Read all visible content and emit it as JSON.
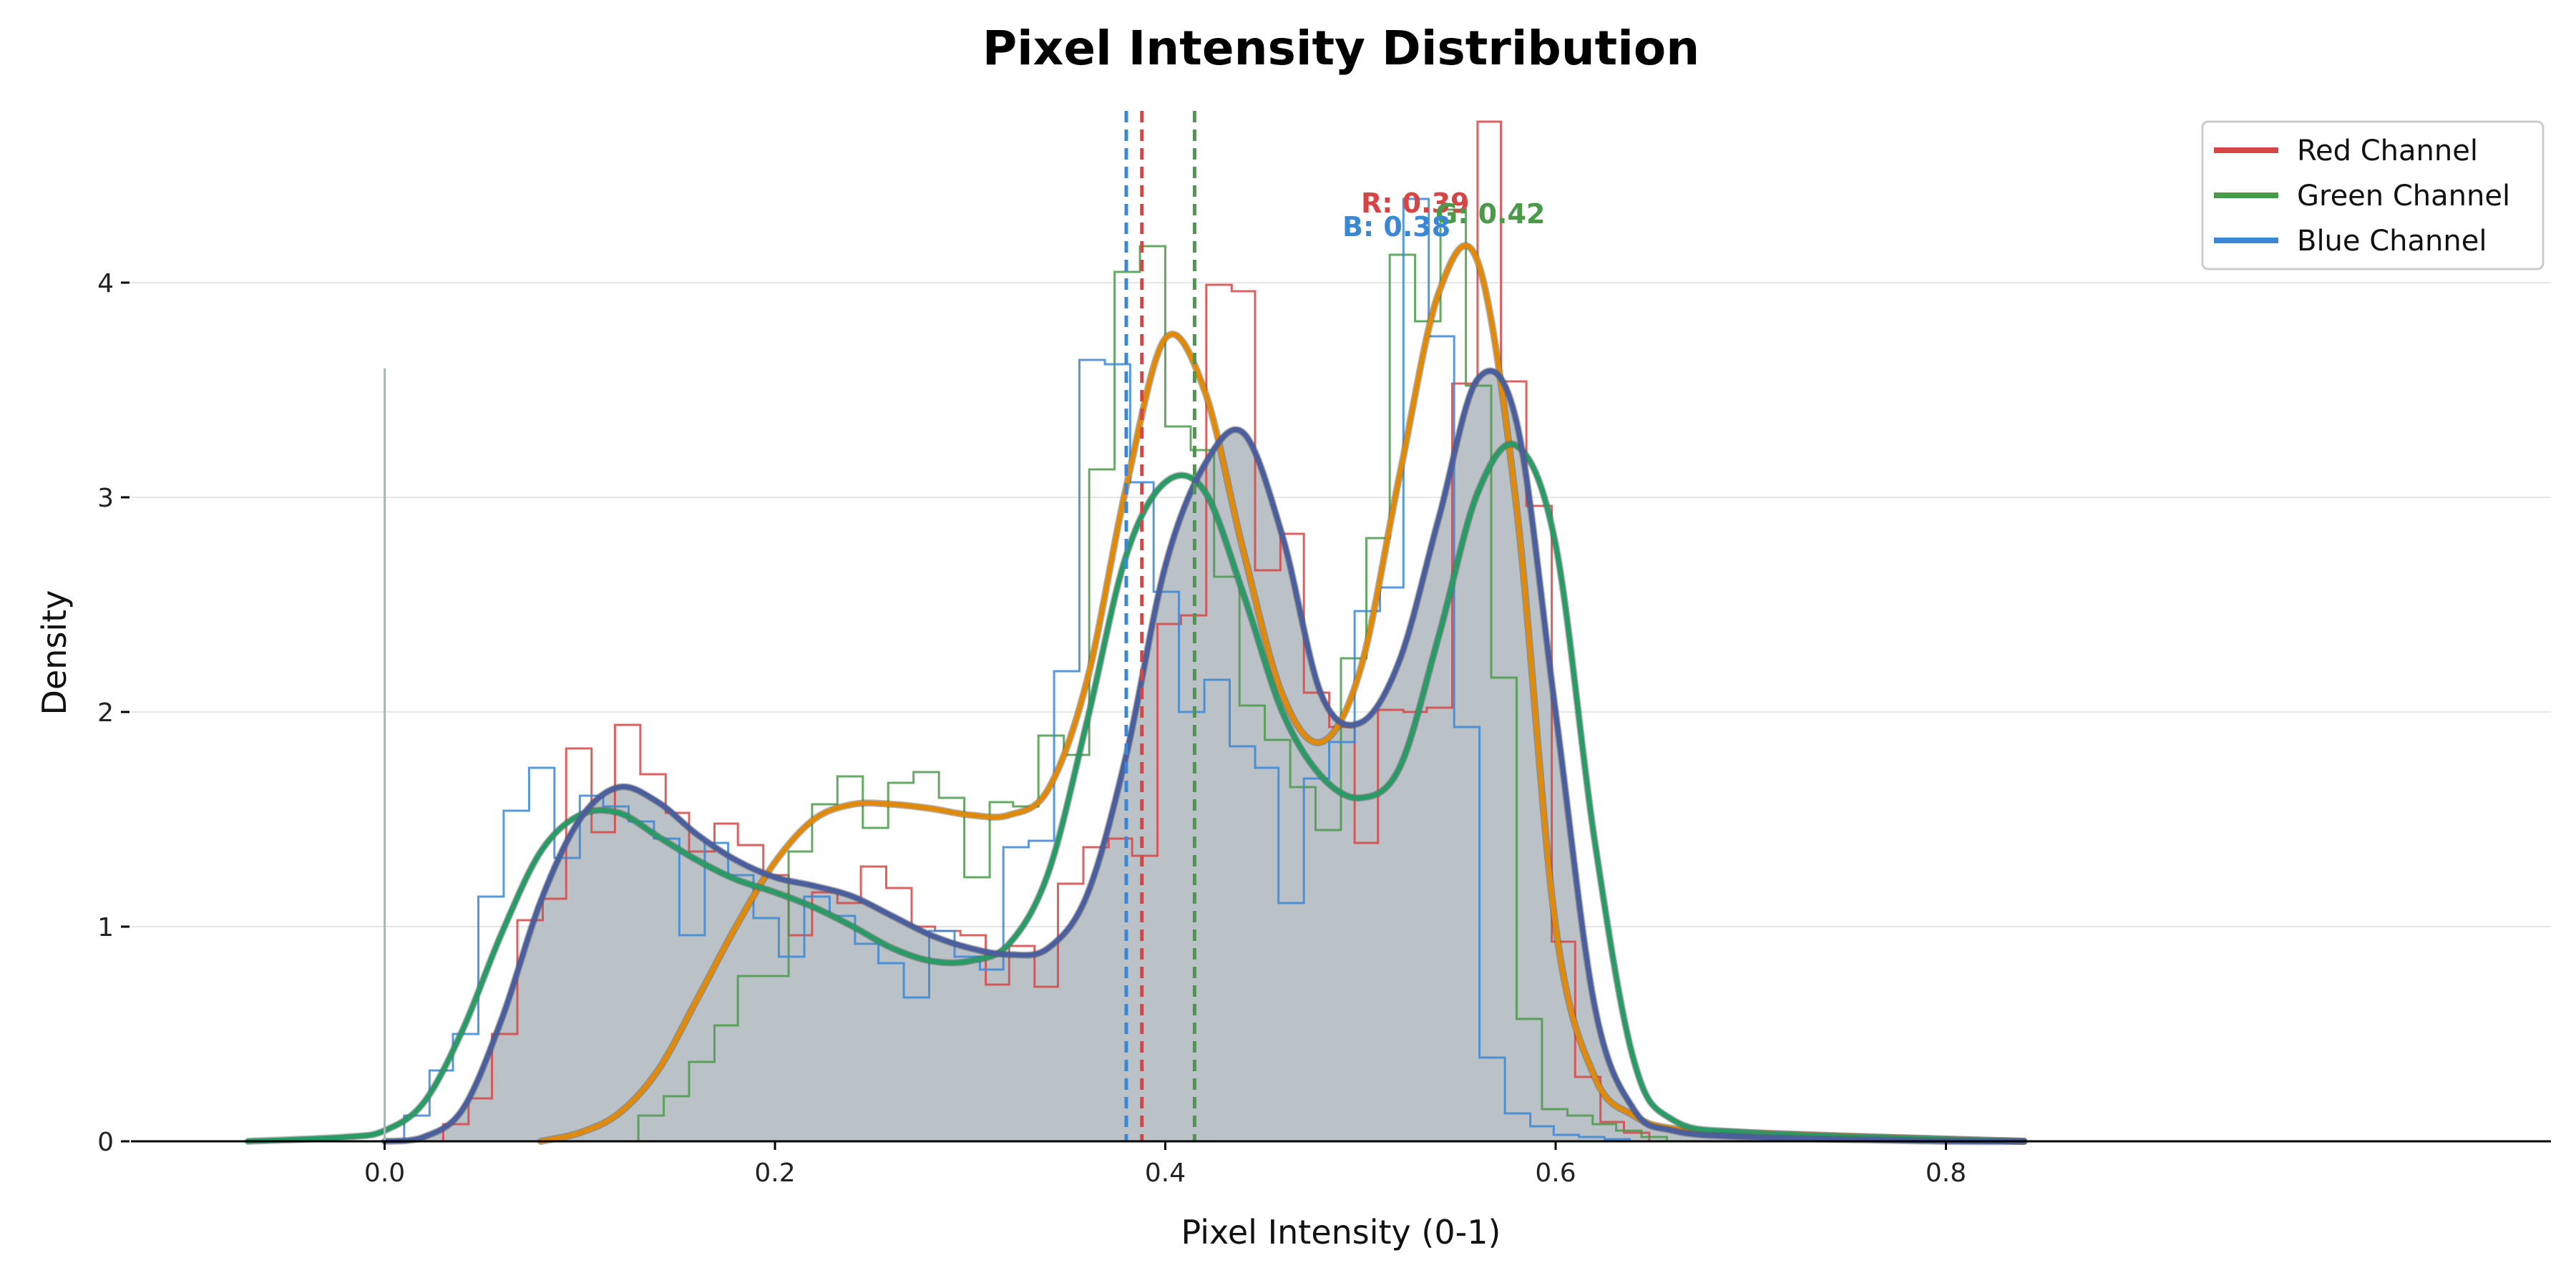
{
  "chart_data": {
    "type": "histogram+kde",
    "title": "Pixel Intensity Distribution",
    "xlabel": "Pixel Intensity (0-1)",
    "ylabel": "Density",
    "xlim": [
      -0.13,
      1.11
    ],
    "ylim": [
      0,
      5.0
    ],
    "xticks": [
      0.0,
      0.2,
      0.4,
      0.6,
      0.8
    ],
    "xtick_labels": [
      "0.0",
      "0.2",
      "0.4",
      "0.6",
      "0.8"
    ],
    "yticks": [
      0,
      1,
      2,
      3,
      4
    ],
    "ytick_labels": [
      "0",
      "1",
      "2",
      "3",
      "4"
    ],
    "grid": "horizontal",
    "legend_position": "top-right",
    "bin_width": 0.0126,
    "colors": {
      "red": "#d64545",
      "green": "#4a9a4a",
      "blue": "#3a87d6",
      "kde_orange": "#e08a0b",
      "kde_green": "#2a9a66",
      "kde_purple": "#4b5f9e",
      "fill": "#b7bfc4"
    },
    "legend": [
      {
        "name": "Red Channel",
        "color": "#d64545"
      },
      {
        "name": "Green Channel",
        "color": "#4a9a4a"
      },
      {
        "name": "Blue Channel",
        "color": "#3a87d6"
      }
    ],
    "histograms": [
      {
        "name": "Red Channel",
        "color": "#d64545",
        "edges": [
          0.03,
          0.043,
          0.055,
          0.068,
          0.081,
          0.093,
          0.106,
          0.118,
          0.131,
          0.144,
          0.156,
          0.169,
          0.181,
          0.194,
          0.207,
          0.219,
          0.232,
          0.244,
          0.257,
          0.27,
          0.282,
          0.295,
          0.308,
          0.32,
          0.333,
          0.345,
          0.358,
          0.371,
          0.383,
          0.396,
          0.408,
          0.421,
          0.434,
          0.446,
          0.459,
          0.471,
          0.484,
          0.497,
          0.509,
          0.522,
          0.534,
          0.547,
          0.56,
          0.572,
          0.585,
          0.598,
          0.61,
          0.623,
          0.635,
          0.648
        ],
        "values": [
          0.08,
          0.2,
          0.5,
          1.03,
          1.13,
          1.83,
          1.44,
          1.94,
          1.71,
          1.53,
          1.35,
          1.48,
          1.38,
          1.24,
          0.96,
          1.16,
          1.11,
          1.28,
          1.18,
          1.0,
          0.98,
          0.96,
          0.73,
          0.91,
          0.72,
          1.2,
          1.37,
          1.41,
          1.33,
          2.41,
          2.45,
          3.99,
          3.96,
          2.66,
          2.83,
          2.09,
          1.93,
          1.39,
          2.01,
          2.0,
          2.02,
          3.53,
          4.75,
          3.54,
          2.96,
          0.93,
          0.3,
          0.09,
          0.04
        ]
      },
      {
        "name": "Green Channel",
        "color": "#4a9a4a",
        "edges": [
          0.13,
          0.143,
          0.156,
          0.169,
          0.181,
          0.194,
          0.207,
          0.219,
          0.232,
          0.245,
          0.258,
          0.271,
          0.284,
          0.297,
          0.31,
          0.322,
          0.335,
          0.348,
          0.361,
          0.374,
          0.387,
          0.4,
          0.413,
          0.425,
          0.438,
          0.451,
          0.464,
          0.477,
          0.49,
          0.503,
          0.515,
          0.528,
          0.541,
          0.554,
          0.567,
          0.58,
          0.593,
          0.606,
          0.619,
          0.631,
          0.644,
          0.657
        ],
        "values": [
          0.12,
          0.21,
          0.37,
          0.54,
          0.77,
          0.77,
          1.35,
          1.57,
          1.7,
          1.46,
          1.67,
          1.72,
          1.6,
          1.23,
          1.58,
          1.56,
          1.89,
          1.8,
          3.13,
          4.05,
          4.17,
          3.33,
          3.22,
          2.63,
          2.03,
          1.87,
          1.65,
          1.45,
          2.25,
          2.81,
          4.13,
          3.82,
          4.34,
          3.52,
          2.16,
          0.57,
          0.15,
          0.12,
          0.08,
          0.05,
          0.02
        ]
      },
      {
        "name": "Blue Channel",
        "color": "#3a87d6",
        "edges": [
          0.01,
          0.023,
          0.035,
          0.048,
          0.061,
          0.074,
          0.087,
          0.1,
          0.112,
          0.125,
          0.138,
          0.151,
          0.164,
          0.176,
          0.189,
          0.202,
          0.215,
          0.228,
          0.241,
          0.253,
          0.266,
          0.279,
          0.292,
          0.305,
          0.317,
          0.33,
          0.343,
          0.356,
          0.369,
          0.382,
          0.394,
          0.407,
          0.42,
          0.433,
          0.446,
          0.458,
          0.471,
          0.484,
          0.497,
          0.51,
          0.522,
          0.535,
          0.548,
          0.561,
          0.574,
          0.587,
          0.599,
          0.612,
          0.625,
          0.638
        ],
        "values": [
          0.12,
          0.33,
          0.5,
          1.14,
          1.54,
          1.74,
          1.32,
          1.61,
          1.56,
          1.49,
          1.41,
          0.96,
          1.39,
          1.24,
          1.04,
          0.86,
          1.14,
          1.05,
          0.92,
          0.83,
          0.67,
          0.98,
          0.86,
          0.8,
          1.37,
          1.4,
          2.19,
          3.64,
          3.62,
          3.07,
          2.56,
          2.0,
          2.15,
          1.84,
          1.74,
          1.11,
          1.69,
          1.86,
          2.47,
          2.58,
          4.39,
          3.75,
          1.93,
          0.39,
          0.13,
          0.07,
          0.03,
          0.02,
          0.01
        ]
      }
    ],
    "kde": [
      {
        "color": "#e08a0b",
        "x": [
          0.08,
          0.1,
          0.12,
          0.14,
          0.16,
          0.18,
          0.2,
          0.22,
          0.24,
          0.26,
          0.28,
          0.3,
          0.32,
          0.34,
          0.36,
          0.38,
          0.4,
          0.42,
          0.44,
          0.46,
          0.48,
          0.5,
          0.52,
          0.54,
          0.56,
          0.58,
          0.6,
          0.62,
          0.64,
          0.66,
          0.7,
          0.8,
          0.84
        ],
        "y": [
          0.0,
          0.04,
          0.13,
          0.33,
          0.66,
          1.0,
          1.3,
          1.5,
          1.57,
          1.57,
          1.55,
          1.52,
          1.52,
          1.64,
          2.15,
          3.05,
          3.74,
          3.5,
          2.75,
          2.08,
          1.86,
          2.2,
          3.1,
          3.95,
          4.1,
          2.95,
          1.0,
          0.3,
          0.12,
          0.06,
          0.04,
          0.01,
          0.0
        ]
      },
      {
        "color": "#2a9a66",
        "x": [
          -0.07,
          -0.02,
          0.0,
          0.02,
          0.04,
          0.06,
          0.08,
          0.1,
          0.12,
          0.14,
          0.16,
          0.18,
          0.2,
          0.22,
          0.24,
          0.26,
          0.28,
          0.3,
          0.32,
          0.34,
          0.36,
          0.38,
          0.4,
          0.42,
          0.44,
          0.46,
          0.48,
          0.5,
          0.52,
          0.54,
          0.56,
          0.58,
          0.6,
          0.62,
          0.64,
          0.66,
          0.7,
          0.8,
          0.84
        ],
        "y": [
          0.0,
          0.02,
          0.05,
          0.18,
          0.52,
          0.97,
          1.35,
          1.52,
          1.53,
          1.42,
          1.31,
          1.22,
          1.16,
          1.09,
          1.0,
          0.9,
          0.84,
          0.84,
          0.92,
          1.25,
          1.96,
          2.73,
          3.07,
          3.03,
          2.55,
          2.0,
          1.7,
          1.6,
          1.74,
          2.35,
          3.02,
          3.24,
          2.78,
          1.4,
          0.38,
          0.1,
          0.04,
          0.01,
          0.0
        ]
      },
      {
        "color": "#4b5f9e",
        "fill": "#b7bfc4",
        "x": [
          0.0,
          0.02,
          0.04,
          0.06,
          0.08,
          0.1,
          0.12,
          0.14,
          0.16,
          0.18,
          0.2,
          0.22,
          0.24,
          0.26,
          0.28,
          0.3,
          0.32,
          0.34,
          0.36,
          0.38,
          0.4,
          0.42,
          0.44,
          0.46,
          0.48,
          0.5,
          0.52,
          0.54,
          0.56,
          0.58,
          0.6,
          0.62,
          0.64,
          0.66,
          0.7,
          0.8,
          0.84
        ],
        "y": [
          0.0,
          0.02,
          0.15,
          0.57,
          1.12,
          1.5,
          1.65,
          1.58,
          1.43,
          1.31,
          1.23,
          1.19,
          1.14,
          1.05,
          0.96,
          0.9,
          0.87,
          0.9,
          1.15,
          1.8,
          2.68,
          3.15,
          3.3,
          2.82,
          2.08,
          1.95,
          2.24,
          2.9,
          3.55,
          3.35,
          2.0,
          0.63,
          0.15,
          0.05,
          0.02,
          0.0,
          0.0
        ]
      }
    ],
    "mean_lines": [
      {
        "label": "R: 0.39",
        "x": 0.388,
        "color": "#d64545"
      },
      {
        "label": "G: 0.42",
        "x": 0.415,
        "color": "#4a9a4a"
      },
      {
        "label": "B: 0.38",
        "x": 0.38,
        "color": "#3a87d6"
      }
    ],
    "reference_line": {
      "x": 0.0,
      "y_top": 3.6,
      "color": "#a7b6b6"
    }
  }
}
